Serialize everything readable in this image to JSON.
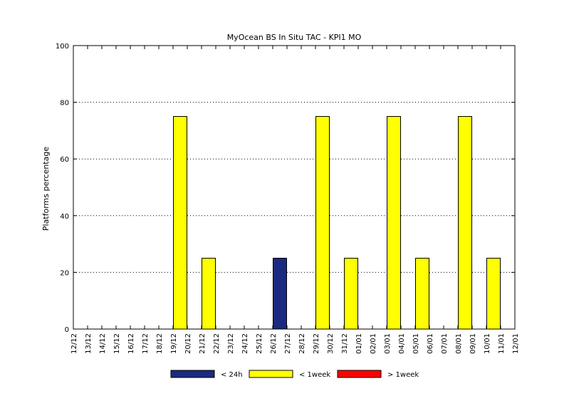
{
  "chart_data": {
    "type": "bar",
    "title": "MyOcean  BS In Situ TAC - KPI1  MO",
    "xlabel": "",
    "ylabel": "Platforms percentage",
    "ylim": [
      0,
      100
    ],
    "yticks": [
      0,
      20,
      40,
      60,
      80,
      100
    ],
    "grid": "horizontal-dotted",
    "legend_position": "bottom",
    "categories": [
      "12/12",
      "13/12",
      "14/12",
      "15/12",
      "16/12",
      "17/12",
      "18/12",
      "19/12",
      "20/12",
      "21/12",
      "22/12",
      "23/12",
      "24/12",
      "25/12",
      "26/12",
      "27/12",
      "28/12",
      "29/12",
      "30/12",
      "31/12",
      "01/01",
      "02/01",
      "03/01",
      "04/01",
      "05/01",
      "06/01",
      "07/01",
      "08/01",
      "09/01",
      "10/01",
      "11/01",
      "12/01"
    ],
    "series": [
      {
        "name": "< 24h",
        "color": "#1a2a80",
        "values": [
          0,
          0,
          0,
          0,
          0,
          0,
          0,
          0,
          0,
          0,
          0,
          0,
          0,
          0,
          25,
          0,
          0,
          0,
          0,
          0,
          0,
          0,
          0,
          0,
          0,
          0,
          0,
          0,
          0,
          0,
          0,
          0
        ]
      },
      {
        "name": "< 1week",
        "color": "#ffff00",
        "values": [
          0,
          0,
          0,
          0,
          0,
          0,
          0,
          75,
          0,
          25,
          0,
          0,
          0,
          0,
          0,
          0,
          0,
          75,
          0,
          25,
          0,
          0,
          75,
          0,
          25,
          0,
          0,
          75,
          0,
          25,
          0,
          0
        ]
      },
      {
        "name": "> 1week",
        "color": "#ff0000",
        "values": [
          0,
          0,
          0,
          0,
          0,
          0,
          0,
          0,
          0,
          0,
          0,
          0,
          0,
          0,
          0,
          0,
          0,
          0,
          0,
          0,
          0,
          0,
          0,
          0,
          0,
          0,
          0,
          0,
          0,
          0,
          0,
          0
        ]
      }
    ]
  }
}
